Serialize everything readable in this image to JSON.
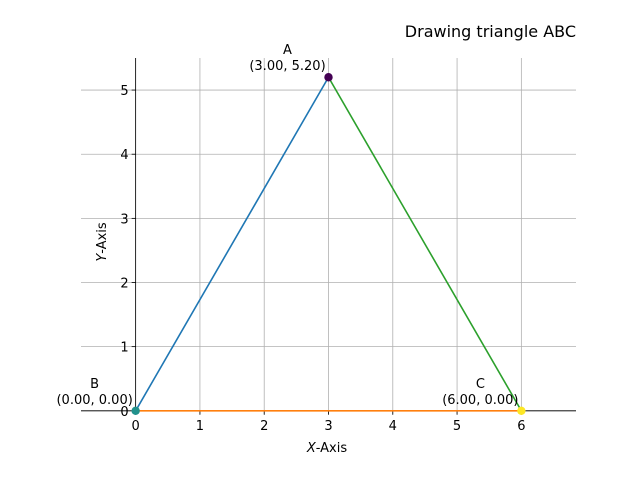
{
  "chart_data": {
    "type": "line",
    "title": "Drawing triangle ABC",
    "xlabel": "X-Axis",
    "xlabel_italic": "X",
    "xlabel_rest": "-Axis",
    "ylabel": "Y-Axis",
    "ylabel_italic": "Y",
    "ylabel_rest": "-Axis",
    "xlim": [
      -0.85,
      6.85
    ],
    "ylim": [
      -0.05,
      5.5
    ],
    "xticks": [
      0,
      1,
      2,
      3,
      4,
      5,
      6
    ],
    "xtick_labels": [
      "0",
      "1",
      "2",
      "3",
      "4",
      "5",
      "6"
    ],
    "yticks": [
      0,
      1,
      2,
      3,
      4,
      5
    ],
    "ytick_labels": [
      "0",
      "1",
      "2",
      "3",
      "4",
      "5"
    ],
    "grid": true,
    "legend": "none",
    "points": [
      {
        "name": "A",
        "x": 3.0,
        "y": 5.2,
        "coords": "(3.00, 5.20)",
        "color": "#440154"
      },
      {
        "name": "B",
        "x": 0.0,
        "y": 0.0,
        "coords": "(0.00, 0.00)",
        "color": "#21918c"
      },
      {
        "name": "C",
        "x": 6.0,
        "y": 0.0,
        "coords": "(6.00, 0.00)",
        "color": "#fde725"
      }
    ],
    "segments": [
      {
        "from": "B",
        "to": "A",
        "color": "#1f77b4"
      },
      {
        "from": "B",
        "to": "C",
        "color": "#ff7f0e"
      },
      {
        "from": "A",
        "to": "C",
        "color": "#2ca02c"
      }
    ]
  }
}
